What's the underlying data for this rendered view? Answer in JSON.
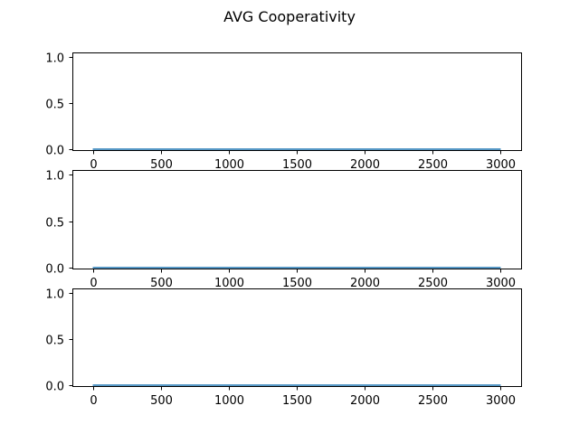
{
  "figure": {
    "title": "AVG Cooperativity"
  },
  "colors": {
    "series": "#1f77b4",
    "axes": "#000000",
    "background": "#ffffff"
  },
  "chart_data": [
    {
      "type": "line",
      "xlabel": "",
      "ylabel": "",
      "xlim": [
        -150,
        3150
      ],
      "ylim": [
        -0.01,
        1.05
      ],
      "xticks": [
        0,
        500,
        1000,
        1500,
        2000,
        2500,
        3000
      ],
      "xtick_labels": [
        "0",
        "500",
        "1000",
        "1500",
        "2000",
        "2500",
        "3000"
      ],
      "yticks": [
        0.0,
        0.5,
        1.0
      ],
      "ytick_labels": [
        "0.0",
        "0.5",
        "1.0"
      ],
      "grid": false,
      "series": [
        {
          "x": [
            0,
            500,
            1000,
            1500,
            2000,
            2500,
            3000
          ],
          "y": [
            0,
            0,
            0,
            0,
            0,
            0,
            0
          ]
        }
      ]
    },
    {
      "type": "line",
      "xlabel": "",
      "ylabel": "",
      "xlim": [
        -150,
        3150
      ],
      "ylim": [
        -0.01,
        1.05
      ],
      "xticks": [
        0,
        500,
        1000,
        1500,
        2000,
        2500,
        3000
      ],
      "xtick_labels": [
        "0",
        "500",
        "1000",
        "1500",
        "2000",
        "2500",
        "3000"
      ],
      "yticks": [
        0.0,
        0.5,
        1.0
      ],
      "ytick_labels": [
        "0.0",
        "0.5",
        "1.0"
      ],
      "grid": false,
      "series": [
        {
          "x": [
            0,
            500,
            1000,
            1500,
            2000,
            2500,
            3000
          ],
          "y": [
            0,
            0,
            0,
            0,
            0,
            0,
            0
          ]
        }
      ]
    },
    {
      "type": "line",
      "xlabel": "",
      "ylabel": "",
      "xlim": [
        -150,
        3150
      ],
      "ylim": [
        -0.01,
        1.05
      ],
      "xticks": [
        0,
        500,
        1000,
        1500,
        2000,
        2500,
        3000
      ],
      "xtick_labels": [
        "0",
        "500",
        "1000",
        "1500",
        "2000",
        "2500",
        "3000"
      ],
      "yticks": [
        0.0,
        0.5,
        1.0
      ],
      "ytick_labels": [
        "0.0",
        "0.5",
        "1.0"
      ],
      "grid": false,
      "series": [
        {
          "x": [
            0,
            500,
            1000,
            1500,
            2000,
            2500,
            3000
          ],
          "y": [
            0,
            0,
            0,
            0,
            0,
            0,
            0
          ]
        }
      ]
    }
  ]
}
